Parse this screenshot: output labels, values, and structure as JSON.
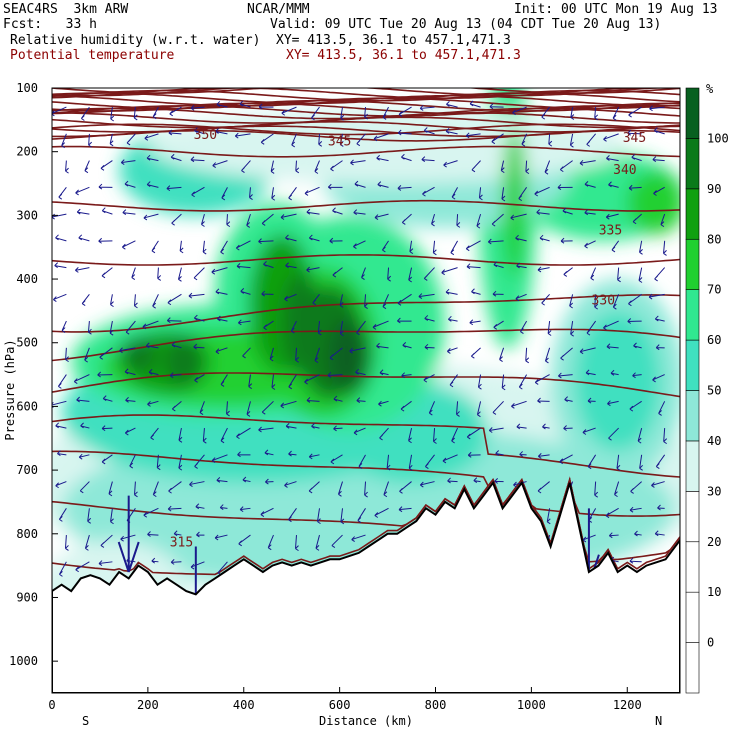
{
  "header": {
    "model": "SEAC4RS  3km ARW",
    "org": "NCAR/MMM",
    "init": "Init: 00 UTC Mon 19 Aug 13",
    "fcst": "Fcst:   33 h",
    "valid": "Valid: 09 UTC Tue 20 Aug 13 (04 CDT Tue 20 Aug 13)",
    "field1": "Relative humidity (w.r.t. water)",
    "xy1": "XY= 413.5, 36.1 to 457.1,471.3",
    "field2": "Potential temperature",
    "xy2": "XY= 413.5, 36.1 to 457.1,471.3"
  },
  "colors": {
    "contour": "#7a1a1a",
    "vector": "#1a1a8c",
    "terrain": "#000000",
    "rh_bins": [
      "#ffffff",
      "#ffffff",
      "#ffffff",
      "#ffffff",
      "#d8f5f0",
      "#8ee8d8",
      "#40e0c0",
      "#30e890",
      "#20d030",
      "#10a010",
      "#0a7a1a",
      "#086020"
    ]
  },
  "chart_data": {
    "type": "heatmap",
    "title": "",
    "xlabel": "Distance (km)",
    "ylabel": "Pressure (hPa)",
    "xlim": [
      0,
      1310
    ],
    "ylim": [
      1050,
      100
    ],
    "x_ticks": [
      0,
      200,
      400,
      600,
      800,
      1000,
      1200
    ],
    "y_ticks": [
      100,
      200,
      300,
      400,
      500,
      600,
      700,
      800,
      900,
      1000
    ],
    "x_end_labels": {
      "left": "S",
      "right": "N"
    },
    "colorbar": {
      "unit": "%",
      "levels": [
        -10,
        0,
        10,
        20,
        30,
        40,
        50,
        60,
        70,
        80,
        90,
        100,
        110
      ],
      "labels": [
        0,
        10,
        20,
        30,
        40,
        50,
        60,
        70,
        80,
        90,
        100
      ]
    },
    "theta_labels": [
      {
        "text": "350",
        "x": 320,
        "p": 180
      },
      {
        "text": "345",
        "x": 600,
        "p": 190
      },
      {
        "text": "345",
        "x": 1215,
        "p": 185
      },
      {
        "text": "340",
        "x": 1195,
        "p": 235
      },
      {
        "text": "335",
        "x": 1165,
        "p": 330
      },
      {
        "text": "330",
        "x": 1150,
        "p": 440
      },
      {
        "text": "315",
        "x": 270,
        "p": 820
      }
    ],
    "terrain_surface": [
      [
        0,
        890
      ],
      [
        20,
        880
      ],
      [
        40,
        890
      ],
      [
        60,
        870
      ],
      [
        80,
        865
      ],
      [
        100,
        870
      ],
      [
        120,
        880
      ],
      [
        140,
        860
      ],
      [
        160,
        870
      ],
      [
        180,
        850
      ],
      [
        200,
        860
      ],
      [
        220,
        880
      ],
      [
        240,
        870
      ],
      [
        260,
        880
      ],
      [
        280,
        890
      ],
      [
        300,
        895
      ],
      [
        320,
        880
      ],
      [
        340,
        870
      ],
      [
        360,
        860
      ],
      [
        380,
        850
      ],
      [
        400,
        840
      ],
      [
        420,
        850
      ],
      [
        440,
        860
      ],
      [
        460,
        850
      ],
      [
        480,
        845
      ],
      [
        500,
        850
      ],
      [
        520,
        845
      ],
      [
        540,
        850
      ],
      [
        560,
        845
      ],
      [
        580,
        840
      ],
      [
        600,
        840
      ],
      [
        620,
        835
      ],
      [
        640,
        830
      ],
      [
        660,
        820
      ],
      [
        680,
        810
      ],
      [
        700,
        800
      ],
      [
        720,
        800
      ],
      [
        740,
        790
      ],
      [
        760,
        780
      ],
      [
        780,
        760
      ],
      [
        800,
        770
      ],
      [
        820,
        750
      ],
      [
        840,
        760
      ],
      [
        860,
        730
      ],
      [
        880,
        760
      ],
      [
        900,
        740
      ],
      [
        920,
        720
      ],
      [
        940,
        760
      ],
      [
        960,
        740
      ],
      [
        980,
        720
      ],
      [
        1000,
        760
      ],
      [
        1020,
        780
      ],
      [
        1040,
        820
      ],
      [
        1060,
        770
      ],
      [
        1080,
        720
      ],
      [
        1100,
        790
      ],
      [
        1120,
        860
      ],
      [
        1140,
        850
      ],
      [
        1160,
        830
      ],
      [
        1180,
        860
      ],
      [
        1200,
        850
      ],
      [
        1220,
        860
      ],
      [
        1240,
        850
      ],
      [
        1260,
        845
      ],
      [
        1280,
        840
      ],
      [
        1300,
        820
      ],
      [
        1310,
        810
      ]
    ]
  }
}
